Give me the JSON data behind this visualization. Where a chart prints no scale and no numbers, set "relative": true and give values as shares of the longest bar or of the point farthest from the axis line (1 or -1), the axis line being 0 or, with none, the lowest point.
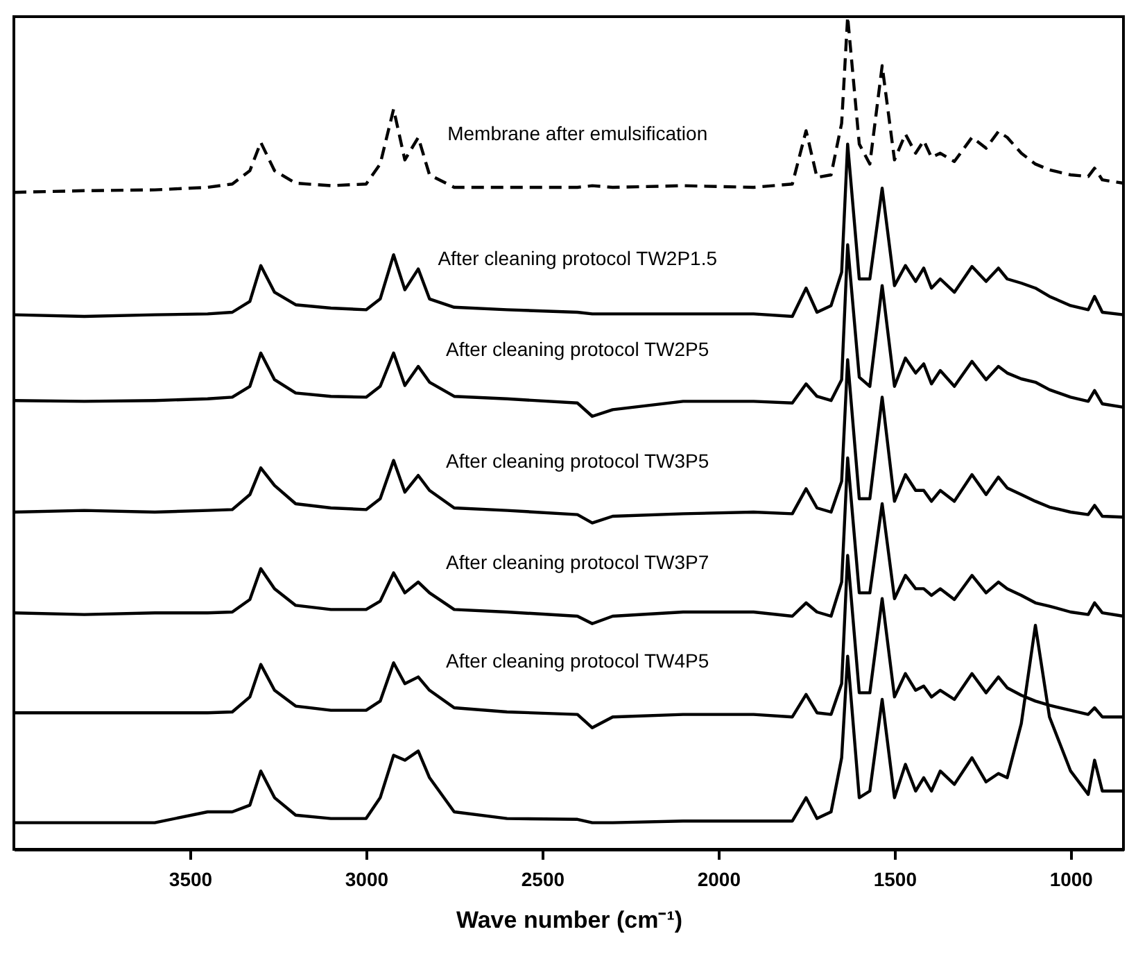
{
  "chart_data": {
    "type": "line",
    "relative": true,
    "xlabel": "Wave number (cm⁻¹)",
    "x": [
      4000,
      3800,
      3600,
      3450,
      3380,
      3330,
      3299,
      3260,
      3200,
      3100,
      3000,
      2960,
      2922,
      2890,
      2852,
      2820,
      2750,
      2600,
      2400,
      2358,
      2300,
      2100,
      1900,
      1790,
      1751,
      1720,
      1680,
      1650,
      1633,
      1600,
      1570,
      1535,
      1500,
      1469,
      1440,
      1417,
      1395,
      1370,
      1330,
      1280,
      1240,
      1205,
      1180,
      1140,
      1100,
      1060,
      1000,
      950,
      932,
      910,
      850
    ],
    "xlim": [
      4000,
      850
    ],
    "xticks": [
      3500,
      3000,
      2500,
      2000,
      1500,
      1000
    ],
    "grid": false,
    "marker": "none",
    "series": [
      {
        "name": "Membrane after emulsification",
        "color": "#000000",
        "line_style": "dashed",
        "values": [
          0.789,
          0.791,
          0.792,
          0.795,
          0.799,
          0.815,
          0.849,
          0.815,
          0.8,
          0.797,
          0.799,
          0.823,
          0.889,
          0.828,
          0.855,
          0.81,
          0.795,
          0.795,
          0.795,
          0.797,
          0.795,
          0.797,
          0.795,
          0.799,
          0.863,
          0.807,
          0.81,
          0.872,
          1.0,
          0.847,
          0.823,
          0.941,
          0.828,
          0.859,
          0.836,
          0.851,
          0.831,
          0.836,
          0.826,
          0.855,
          0.842,
          0.862,
          0.855,
          0.836,
          0.823,
          0.816,
          0.81,
          0.808,
          0.818,
          0.804,
          0.8
        ]
      },
      {
        "name": "After cleaning protocol TW2P1.5",
        "color": "#000000",
        "line_style": "solid",
        "values": [
          0.642,
          0.64,
          0.642,
          0.643,
          0.645,
          0.658,
          0.701,
          0.669,
          0.654,
          0.65,
          0.648,
          0.661,
          0.714,
          0.672,
          0.697,
          0.661,
          0.651,
          0.648,
          0.645,
          0.643,
          0.643,
          0.643,
          0.643,
          0.64,
          0.674,
          0.645,
          0.653,
          0.693,
          0.847,
          0.685,
          0.685,
          0.794,
          0.677,
          0.701,
          0.682,
          0.698,
          0.674,
          0.685,
          0.669,
          0.7,
          0.682,
          0.698,
          0.685,
          0.68,
          0.674,
          0.664,
          0.653,
          0.648,
          0.664,
          0.645,
          0.642
        ]
      },
      {
        "name": "After cleaning protocol TW2P5",
        "color": "#000000",
        "line_style": "solid",
        "values": [
          0.539,
          0.538,
          0.539,
          0.541,
          0.543,
          0.556,
          0.596,
          0.564,
          0.548,
          0.544,
          0.543,
          0.556,
          0.596,
          0.557,
          0.58,
          0.561,
          0.544,
          0.541,
          0.536,
          0.52,
          0.528,
          0.538,
          0.538,
          0.536,
          0.559,
          0.544,
          0.539,
          0.564,
          0.726,
          0.567,
          0.556,
          0.677,
          0.556,
          0.59,
          0.572,
          0.583,
          0.559,
          0.575,
          0.556,
          0.586,
          0.564,
          0.58,
          0.572,
          0.565,
          0.561,
          0.552,
          0.543,
          0.538,
          0.551,
          0.535,
          0.531
        ]
      },
      {
        "name": "After cleaning protocol TW3P5",
        "color": "#000000",
        "line_style": "solid",
        "values": [
          0.405,
          0.407,
          0.405,
          0.407,
          0.408,
          0.426,
          0.458,
          0.437,
          0.415,
          0.41,
          0.408,
          0.421,
          0.467,
          0.429,
          0.449,
          0.431,
          0.41,
          0.407,
          0.402,
          0.392,
          0.4,
          0.403,
          0.405,
          0.403,
          0.433,
          0.41,
          0.405,
          0.442,
          0.588,
          0.421,
          0.421,
          0.543,
          0.418,
          0.45,
          0.431,
          0.431,
          0.418,
          0.431,
          0.418,
          0.45,
          0.426,
          0.447,
          0.434,
          0.426,
          0.418,
          0.411,
          0.405,
          0.402,
          0.413,
          0.4,
          0.399
        ]
      },
      {
        "name": "After cleaning protocol TW3P7",
        "color": "#000000",
        "line_style": "solid",
        "values": [
          0.284,
          0.282,
          0.284,
          0.284,
          0.285,
          0.3,
          0.337,
          0.313,
          0.293,
          0.288,
          0.288,
          0.298,
          0.332,
          0.308,
          0.321,
          0.308,
          0.288,
          0.285,
          0.28,
          0.271,
          0.28,
          0.285,
          0.285,
          0.28,
          0.296,
          0.285,
          0.28,
          0.321,
          0.47,
          0.308,
          0.308,
          0.415,
          0.301,
          0.329,
          0.313,
          0.313,
          0.305,
          0.313,
          0.3,
          0.329,
          0.308,
          0.321,
          0.313,
          0.305,
          0.296,
          0.292,
          0.285,
          0.282,
          0.296,
          0.284,
          0.28
        ]
      },
      {
        "name": "After cleaning protocol TW4P5",
        "color": "#000000",
        "line_style": "solid",
        "values": [
          0.164,
          0.164,
          0.164,
          0.164,
          0.165,
          0.183,
          0.222,
          0.191,
          0.172,
          0.167,
          0.167,
          0.178,
          0.224,
          0.199,
          0.207,
          0.191,
          0.17,
          0.165,
          0.162,
          0.146,
          0.159,
          0.162,
          0.162,
          0.159,
          0.186,
          0.164,
          0.162,
          0.199,
          0.353,
          0.188,
          0.188,
          0.301,
          0.183,
          0.211,
          0.191,
          0.196,
          0.183,
          0.191,
          0.18,
          0.211,
          0.188,
          0.207,
          0.194,
          0.185,
          0.178,
          0.173,
          0.167,
          0.162,
          0.17,
          0.159,
          0.159
        ]
      },
      {
        "color": "#000000",
        "line_style": "solid",
        "values": [
          0.032,
          0.032,
          0.032,
          0.045,
          0.045,
          0.053,
          0.094,
          0.062,
          0.041,
          0.037,
          0.037,
          0.062,
          0.113,
          0.107,
          0.118,
          0.086,
          0.045,
          0.037,
          0.036,
          0.032,
          0.032,
          0.034,
          0.034,
          0.034,
          0.062,
          0.037,
          0.045,
          0.11,
          0.232,
          0.062,
          0.07,
          0.18,
          0.062,
          0.102,
          0.07,
          0.086,
          0.07,
          0.094,
          0.078,
          0.11,
          0.081,
          0.091,
          0.086,
          0.151,
          0.269,
          0.159,
          0.094,
          0.066,
          0.107,
          0.07,
          0.07
        ]
      }
    ]
  }
}
